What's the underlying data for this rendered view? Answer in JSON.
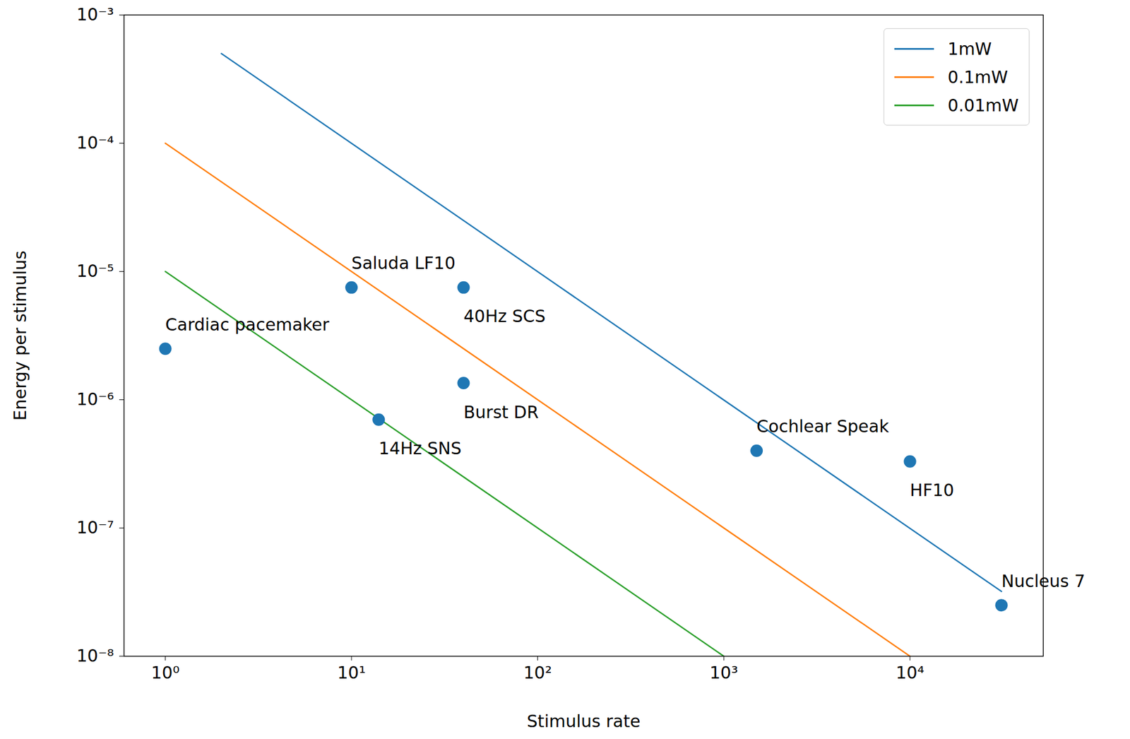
{
  "chart_data": {
    "type": "scatter",
    "xlabel": "Stimulus rate",
    "ylabel": "Energy per stimulus",
    "log": true,
    "xlim": [
      0.6,
      52000
    ],
    "ylim": [
      1e-08,
      0.001
    ],
    "xticks": [
      {
        "value": 1,
        "label": "10⁰"
      },
      {
        "value": 10,
        "label": "10¹"
      },
      {
        "value": 100,
        "label": "10²"
      },
      {
        "value": 1000,
        "label": "10³"
      },
      {
        "value": 10000,
        "label": "10⁴"
      }
    ],
    "yticks": [
      {
        "value": 1e-08,
        "label": "10⁻⁸"
      },
      {
        "value": 1e-07,
        "label": "10⁻⁷"
      },
      {
        "value": 1e-06,
        "label": "10⁻⁶"
      },
      {
        "value": 1e-05,
        "label": "10⁻⁵"
      },
      {
        "value": 0.0001,
        "label": "10⁻⁴"
      },
      {
        "value": 0.001,
        "label": "10⁻³"
      }
    ],
    "legend": "upper right",
    "series": [
      {
        "name": "1mW",
        "type": "line",
        "color": "#1f77b4",
        "x": [
          2,
          31000
        ],
        "values": [
          0.0005,
          3.2e-08
        ]
      },
      {
        "name": "0.1mW",
        "type": "line",
        "color": "#ff7f0e",
        "x": [
          1,
          10000
        ],
        "values": [
          0.0001,
          1e-08
        ]
      },
      {
        "name": "0.01mW",
        "type": "line",
        "color": "#2ca02c",
        "x": [
          1,
          1000
        ],
        "values": [
          1e-05,
          1e-08
        ]
      },
      {
        "type": "scatter",
        "color": "#1f77b4",
        "marker": "circle",
        "labels": [
          "Cardiac pacemaker",
          "Saluda LF10",
          "40Hz SCS",
          "Burst DR",
          "14Hz SNS",
          "Cochlear Speak",
          "HF10",
          "Nucleus 7"
        ],
        "x": [
          1,
          10,
          40,
          40,
          14,
          1500,
          10000,
          31000
        ],
        "values": [
          2.5e-06,
          7.5e-06,
          7.5e-06,
          1.35e-06,
          7e-07,
          4e-07,
          3.3e-07,
          2.5e-08
        ]
      }
    ]
  }
}
